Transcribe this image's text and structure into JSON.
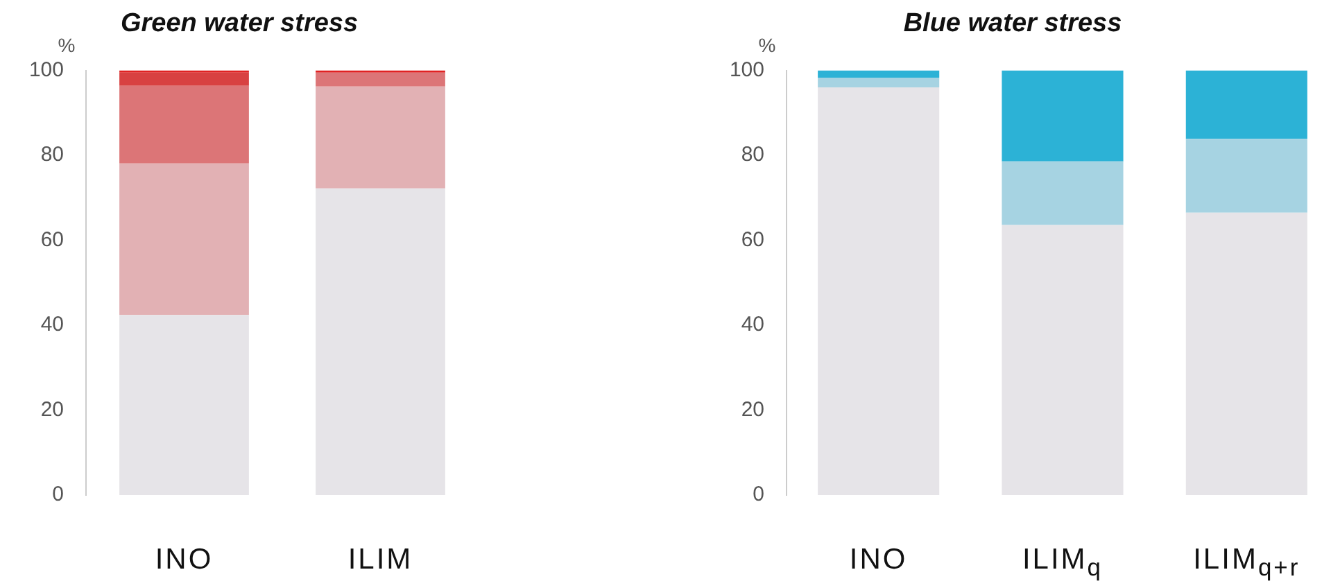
{
  "chart_data": [
    {
      "type": "bar",
      "title": "Green water stress",
      "ylabel": "%",
      "categories": [
        "INO",
        "ILIM"
      ],
      "stacked": true,
      "ylim": [
        0,
        100
      ],
      "yticks": [
        0,
        20,
        40,
        60,
        80,
        100
      ],
      "legend": false,
      "series": [
        {
          "color": "#e6e4e8",
          "values": [
            42.4,
            72.2
          ]
        },
        {
          "color": "#e2b1b4",
          "values": [
            35.7,
            24
          ]
        },
        {
          "color": "#dc7577",
          "values": [
            18.3,
            3.3
          ]
        },
        {
          "color": "#d84141",
          "values": [
            3.1,
            0
          ]
        },
        {
          "color": "#e02222",
          "values": [
            0.5,
            0.5
          ]
        }
      ]
    },
    {
      "type": "bar",
      "title": "Blue water stress",
      "ylabel": "%",
      "categories": [
        "INO",
        "ILIM$_{q}$",
        "ILIM$_{q+r}$"
      ],
      "stacked": true,
      "ylim": [
        0,
        100
      ],
      "yticks": [
        0,
        20,
        40,
        60,
        80,
        100
      ],
      "legend": false,
      "series": [
        {
          "color": "#e6e4e8",
          "values": [
            96,
            63.6,
            66.5
          ]
        },
        {
          "color": "#a6d3e2",
          "values": [
            2.3,
            15,
            17.4
          ]
        },
        {
          "color": "#2cb2d6",
          "values": [
            1.7,
            21.4,
            16.1
          ]
        }
      ]
    }
  ]
}
